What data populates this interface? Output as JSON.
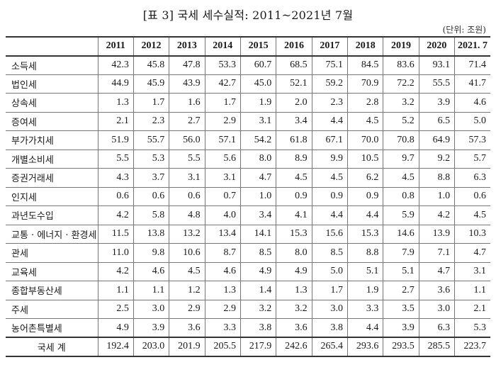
{
  "title": "[표 3] 국세 세수실적: 2011~2021년 7월",
  "unit": "(단위: 조원)",
  "years": [
    "2011",
    "2012",
    "2013",
    "2014",
    "2015",
    "2016",
    "2017",
    "2018",
    "2019",
    "2020",
    "2021. 7"
  ],
  "rows": [
    {
      "label": "소득세",
      "values": [
        "42.3",
        "45.8",
        "47.8",
        "53.3",
        "60.7",
        "68.5",
        "75.1",
        "84.5",
        "83.6",
        "93.1",
        "71.4"
      ]
    },
    {
      "label": "법인세",
      "values": [
        "44.9",
        "45.9",
        "43.9",
        "42.7",
        "45.0",
        "52.1",
        "59.2",
        "70.9",
        "72.2",
        "55.5",
        "41.7"
      ]
    },
    {
      "label": "상속세",
      "values": [
        "1.3",
        "1.7",
        "1.6",
        "1.7",
        "1.9",
        "2.0",
        "2.3",
        "2.8",
        "3.2",
        "3.9",
        "4.6"
      ]
    },
    {
      "label": "증여세",
      "values": [
        "2.1",
        "2.3",
        "2.7",
        "2.9",
        "3.1",
        "3.4",
        "4.4",
        "4.5",
        "5.2",
        "6.5",
        "5.0"
      ]
    },
    {
      "label": "부가가치세",
      "values": [
        "51.9",
        "55.7",
        "56.0",
        "57.1",
        "54.2",
        "61.8",
        "67.1",
        "70.0",
        "70.8",
        "64.9",
        "57.3"
      ]
    },
    {
      "label": "개별소비세",
      "values": [
        "5.5",
        "5.3",
        "5.5",
        "5.6",
        "8.0",
        "8.9",
        "9.9",
        "10.5",
        "9.7",
        "9.2",
        "5.7"
      ]
    },
    {
      "label": "증권거래세",
      "values": [
        "4.3",
        "3.7",
        "3.1",
        "3.1",
        "4.7",
        "4.5",
        "4.5",
        "6.2",
        "4.5",
        "8.8",
        "6.3"
      ]
    },
    {
      "label": "인지세",
      "values": [
        "0.6",
        "0.6",
        "0.6",
        "0.7",
        "1.0",
        "0.9",
        "0.9",
        "0.9",
        "0.8",
        "1.0",
        "0.6"
      ]
    },
    {
      "label": "과년도수입",
      "values": [
        "4.2",
        "5.8",
        "4.8",
        "4.0",
        "3.4",
        "4.1",
        "4.4",
        "4.4",
        "5.9",
        "4.2",
        "4.5"
      ]
    },
    {
      "label": "교통 · 에너지 · 환경세",
      "values": [
        "11.5",
        "13.8",
        "13.2",
        "13.4",
        "14.1",
        "15.3",
        "15.6",
        "15.3",
        "14.6",
        "13.9",
        "10.3"
      ]
    },
    {
      "label": "관세",
      "values": [
        "11.0",
        "9.8",
        "10.6",
        "8.7",
        "8.5",
        "8.0",
        "8.5",
        "8.8",
        "7.9",
        "7.1",
        "4.7"
      ]
    },
    {
      "label": "교육세",
      "values": [
        "4.2",
        "4.6",
        "4.5",
        "4.6",
        "4.9",
        "4.9",
        "5.0",
        "5.1",
        "5.1",
        "4.7",
        "3.1"
      ]
    },
    {
      "label": "종합부동산세",
      "values": [
        "1.1",
        "1.1",
        "1.2",
        "1.3",
        "1.4",
        "1.3",
        "1.7",
        "1.9",
        "2.7",
        "3.6",
        "1.1"
      ]
    },
    {
      "label": "주세",
      "values": [
        "2.5",
        "3.0",
        "2.9",
        "2.9",
        "3.2",
        "3.2",
        "3.0",
        "3.3",
        "3.5",
        "3.0",
        "2.1"
      ]
    },
    {
      "label": "농어촌특별세",
      "values": [
        "4.9",
        "3.9",
        "3.6",
        "3.3",
        "3.8",
        "3.6",
        "3.8",
        "4.4",
        "3.9",
        "6.3",
        "5.3"
      ]
    }
  ],
  "total": {
    "label": "국세 계",
    "values": [
      "192.4",
      "203.0",
      "201.9",
      "205.5",
      "217.9",
      "242.6",
      "265.4",
      "293.6",
      "293.5",
      "285.5",
      "223.7"
    ]
  }
}
